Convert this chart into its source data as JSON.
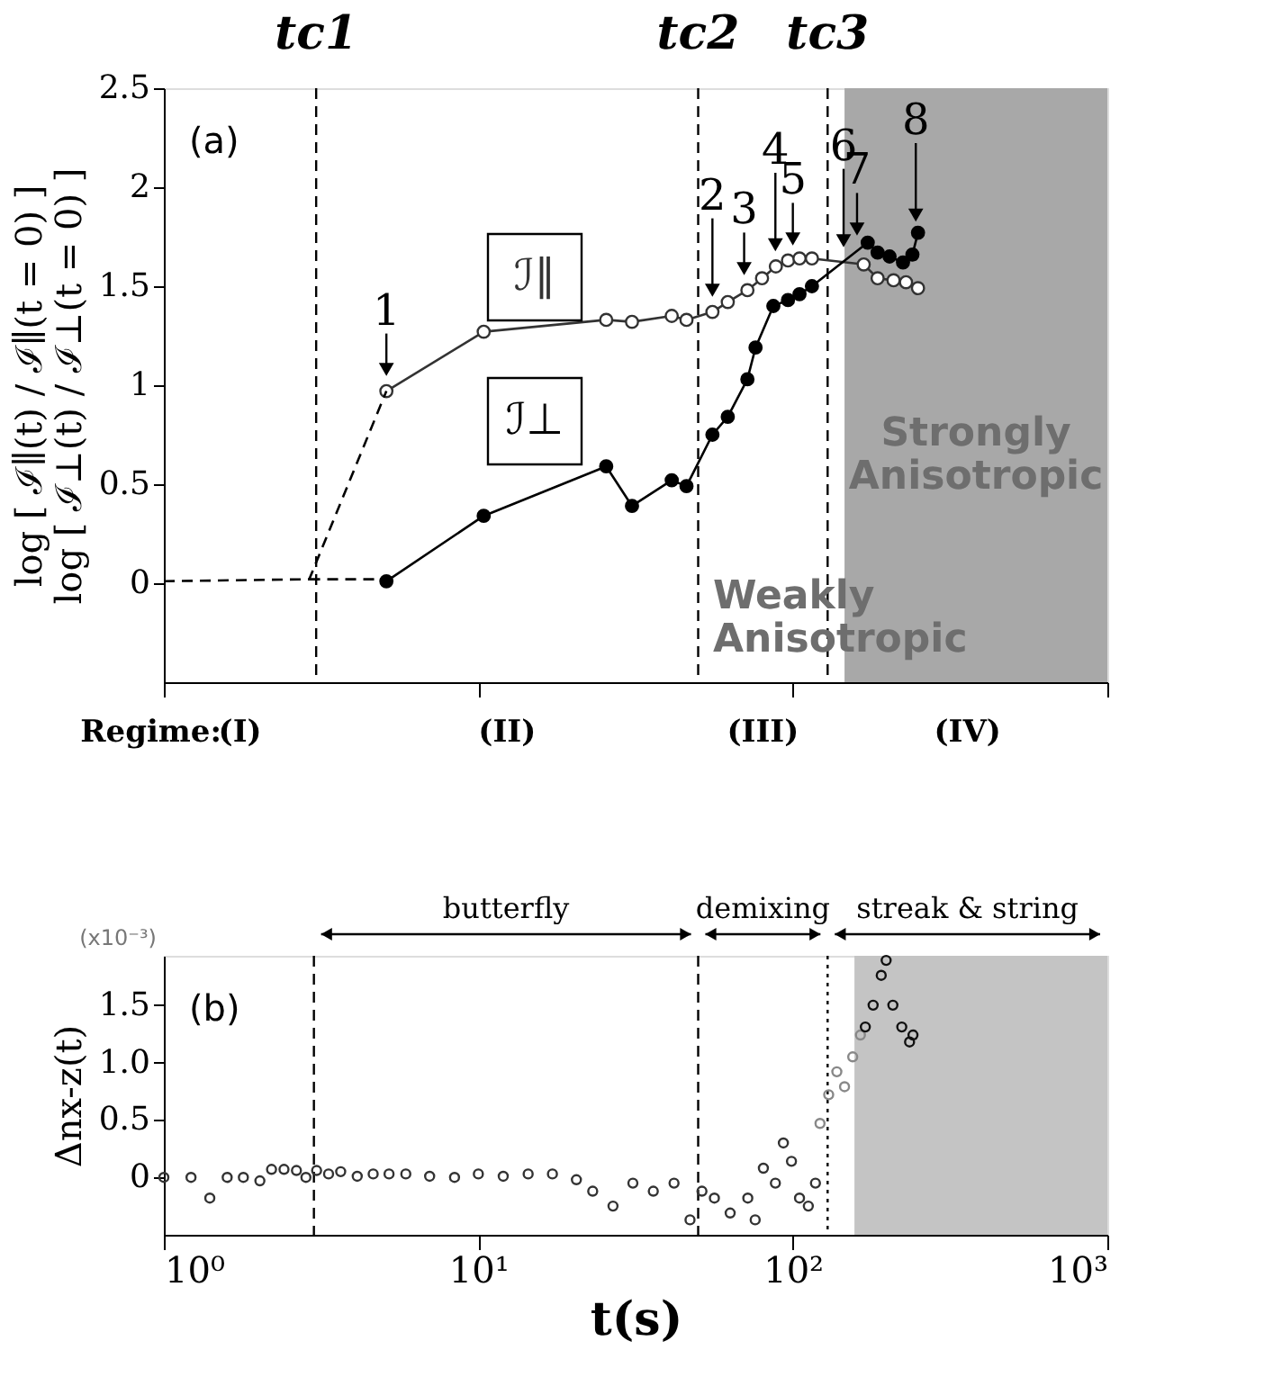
{
  "chart_data": [
    {
      "type": "line",
      "ylabel": [
        "log [ ℐ∥(t) / ℐ∥(t = 0) ]",
        "log [ ℐ⊥(t) / ℐ⊥(t = 0) ]"
      ],
      "xlim": [
        1,
        1000
      ],
      "ylim": [
        -0.5,
        2.5
      ],
      "log": "x",
      "tick_labels": "y",
      "xticks": [
        {
          "value": 1,
          "label": null
        },
        {
          "value": 10,
          "label": null
        },
        {
          "value": 100,
          "label": null
        },
        {
          "value": 1000,
          "label": null
        }
      ],
      "yticks": [
        0,
        0.5,
        1,
        1.5,
        2,
        2.5
      ],
      "grid": false,
      "marker": "circle",
      "series": [
        {
          "name": "ℐ∥",
          "color": "#333333",
          "x": [
            5.1,
            10.4,
            25.5,
            30.8,
            41.2,
            45.9,
            55.5,
            62.1,
            71.7,
            79.8,
            88.3,
            96.5,
            105,
            115,
            168,
            186,
            209,
            229,
            250
          ],
          "values": [
            0.97,
            1.27,
            1.33,
            1.32,
            1.35,
            1.33,
            1.37,
            1.42,
            1.48,
            1.54,
            1.6,
            1.63,
            1.64,
            1.64,
            1.61,
            1.54,
            1.53,
            1.52,
            1.49
          ]
        },
        {
          "name": "ℐ⊥",
          "color": "#000000",
          "x": [
            5.1,
            10.4,
            25.5,
            30.8,
            41.2,
            45.9,
            55.5,
            62.1,
            71.7,
            76.1,
            86.7,
            96.5,
            105,
            115,
            173,
            186,
            203,
            224,
            240,
            250
          ],
          "values": [
            0.01,
            0.34,
            0.59,
            0.39,
            0.52,
            0.49,
            0.75,
            0.84,
            1.03,
            1.19,
            1.4,
            1.43,
            1.46,
            1.5,
            1.72,
            1.67,
            1.65,
            1.62,
            1.66,
            1.77
          ]
        },
        {
          "color": "#000000",
          "marker": "none",
          "line_style": "dashed",
          "x": [
            1,
            2.9,
            5.1
          ],
          "values": [
            0.01,
            0.02,
            0.97
          ]
        },
        {
          "color": "#000000",
          "marker": "none",
          "line_style": "dashed",
          "x": [
            2.9,
            5.1
          ],
          "values": [
            0.02,
            0.02
          ]
        }
      ],
      "ref_lines": [
        {
          "axis": "x",
          "value": 3.05,
          "label": "tc1",
          "line_style": "dashed"
        },
        {
          "axis": "x",
          "value": 50,
          "label": "tc2",
          "line_style": "dashed"
        },
        {
          "axis": "x",
          "value": 129,
          "label": "tc3",
          "line_style": "dashed"
        }
      ],
      "bands": [
        {
          "axis": "x",
          "from": 146,
          "to": 1000,
          "label": "Strongly Anisotropic",
          "color": "#a8a8a8"
        }
      ],
      "annotations": [
        "(a)",
        "Weakly Anisotropic",
        "Regime:",
        {
          "text": "1",
          "x": 5.1,
          "y": 0.97
        },
        {
          "text": "2",
          "x": 55.5,
          "y": 1.37
        },
        {
          "text": "3",
          "x": 70,
          "y": 1.48
        },
        {
          "text": "4",
          "x": 88,
          "y": 1.6
        },
        {
          "text": "5",
          "x": 100,
          "y": 1.63
        },
        {
          "text": "6",
          "x": 145,
          "y": 1.62
        },
        {
          "text": "7",
          "x": 160,
          "y": 1.68
        },
        {
          "text": "8",
          "x": 246,
          "y": 1.75
        },
        "(I)",
        "(II)",
        "(III)",
        "(IV)"
      ]
    },
    {
      "type": "scatter",
      "xlabel": "t(s)",
      "ylabel": "Δnx-z(t)",
      "xlim": [
        1,
        1000
      ],
      "ylim": [
        -0.5,
        1.93
      ],
      "log": "x",
      "xticks": [
        {
          "value": 1,
          "label": "10⁰"
        },
        {
          "value": 10,
          "label": "10¹"
        },
        {
          "value": 100,
          "label": "10²"
        },
        {
          "value": 1000,
          "label": "10³"
        }
      ],
      "yticks": [
        0,
        0.5,
        {
          "value": 1,
          "label": "1.0"
        },
        1.5
      ],
      "grid": false,
      "marker": "circle",
      "series": [
        {
          "color": "#333333",
          "x": [
            1,
            1.22,
            1.4,
            1.59,
            1.79,
            2.02,
            2.2,
            2.41,
            2.64,
            2.83,
            3.06,
            3.34,
            3.65,
            4.12,
            4.63,
            5.2,
            5.88,
            7.0,
            8.4,
            10,
            12,
            14.4,
            17.2,
            20.5,
            23.1,
            26.8,
            31,
            36,
            41.9,
            47.1,
            51.4,
            56.3,
            63.2,
            71.9,
            75.9,
            80.6,
            88,
            93.3,
            99,
            105,
            112,
            118
          ],
          "values": [
            0,
            0,
            -0.18,
            0,
            0,
            -0.03,
            0.07,
            0.07,
            0.06,
            0,
            0.06,
            0.03,
            0.05,
            0.01,
            0.03,
            0.03,
            0.03,
            0.01,
            0,
            0.03,
            0.01,
            0.03,
            0.03,
            -0.02,
            -0.12,
            -0.25,
            -0.05,
            -0.12,
            -0.05,
            -0.37,
            -0.12,
            -0.18,
            -0.31,
            -0.18,
            -0.37,
            0.08,
            -0.05,
            0.3,
            0.14,
            -0.18,
            -0.25,
            -0.05
          ]
        },
        {
          "color": "#888888",
          "x": [
            122,
            130,
            138,
            146,
            155,
            164
          ],
          "values": [
            0.47,
            0.72,
            0.92,
            0.79,
            1.05,
            1.24
          ]
        },
        {
          "color": "#111111",
          "x": [
            170,
            180,
            191,
            198,
            208,
            222,
            235,
            241
          ],
          "values": [
            1.31,
            1.5,
            1.76,
            1.89,
            1.5,
            1.31,
            1.18,
            1.24
          ]
        }
      ],
      "ref_lines": [
        {
          "axis": "x",
          "value": 3.0,
          "line_style": "dashed"
        },
        {
          "axis": "x",
          "value": 50,
          "line_style": "dashed"
        },
        {
          "axis": "x",
          "value": 129,
          "line_style": "dotted"
        }
      ],
      "bands": [
        {
          "axis": "x",
          "from": 157,
          "to": 1000,
          "color": "#c4c4c4"
        }
      ],
      "annotations": [
        "(b)",
        "(x10⁻³)",
        "butterfly",
        "demixing",
        "streak & string"
      ]
    }
  ]
}
